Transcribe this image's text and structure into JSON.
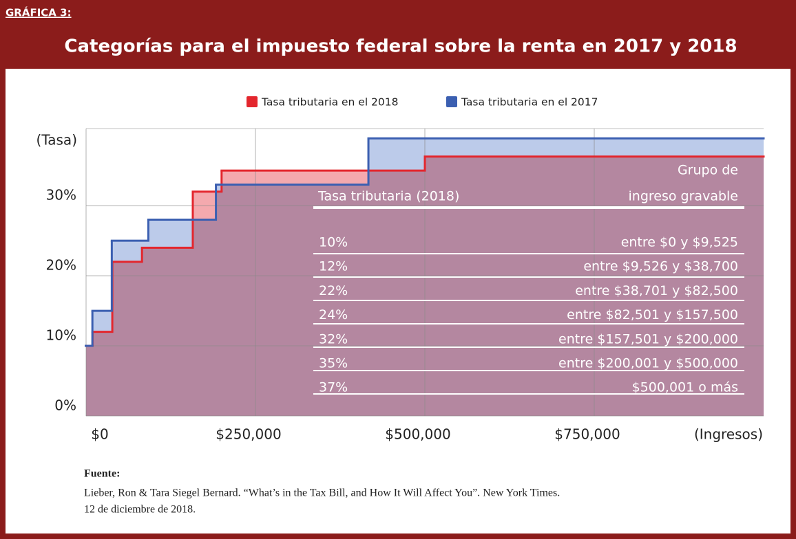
{
  "label": "GRÁFICA 3:",
  "chart_data": {
    "type": "step",
    "title": "Categorías para el impuesto federal sobre la renta en 2017 y 2018",
    "ylabel": "(Tasa)",
    "xlabel": "(Ingresos)",
    "series": [
      {
        "name": "Tasa tributaria en el 2018",
        "color": "#e3262d",
        "fill": "#f4a9ae",
        "x": [
          0,
          9525,
          38700,
          82500,
          157500,
          200000,
          500000
        ],
        "values": [
          10,
          12,
          22,
          24,
          32,
          35,
          37
        ]
      },
      {
        "name": "Tasa tributaria en el 2017",
        "color": "#3b5fb1",
        "fill": "#bccbea",
        "x": [
          0,
          9325,
          37950,
          91900,
          191650,
          416700
        ],
        "values": [
          10,
          15,
          25,
          28,
          33,
          39.6
        ]
      }
    ],
    "xlim": [
      0,
      1000000
    ],
    "xticks": [
      {
        "value": 0,
        "label": "$0"
      },
      {
        "value": 250000,
        "label": "$250,000"
      },
      {
        "value": 500000,
        "label": "$500,000"
      },
      {
        "value": 750000,
        "label": "$750,000"
      }
    ],
    "ylim": [
      0,
      41
    ],
    "yticks": [
      {
        "value": 0,
        "label": "0%"
      },
      {
        "value": 10,
        "label": "10%"
      },
      {
        "value": 20,
        "label": "20%"
      },
      {
        "value": 30,
        "label": "30%"
      }
    ],
    "grid": true,
    "legend": "top",
    "table": {
      "rate_header": "Tasa tributaria (2018)",
      "group_header": [
        "Grupo de",
        "ingreso gravable"
      ],
      "rows": [
        [
          "10%",
          "entre $0 y $9,525"
        ],
        [
          "12%",
          "entre $9,526 y $38,700"
        ],
        [
          "22%",
          "entre $38,701 y $82,500"
        ],
        [
          "24%",
          "entre $82,501 y $157,500"
        ],
        [
          "32%",
          "entre $157,501 y $200,000"
        ],
        [
          "35%",
          "entre $200,001 y $500,000"
        ],
        [
          "37%",
          "$500,001 o más"
        ]
      ]
    }
  },
  "source": {
    "heading": "Fuente:",
    "lines": [
      "Lieber, Ron & Tara Siegel Bernard.  “What’s in the Tax Bill, and How It Will Affect You”.  New York Times.",
      "12 de diciembre de 2018."
    ]
  }
}
